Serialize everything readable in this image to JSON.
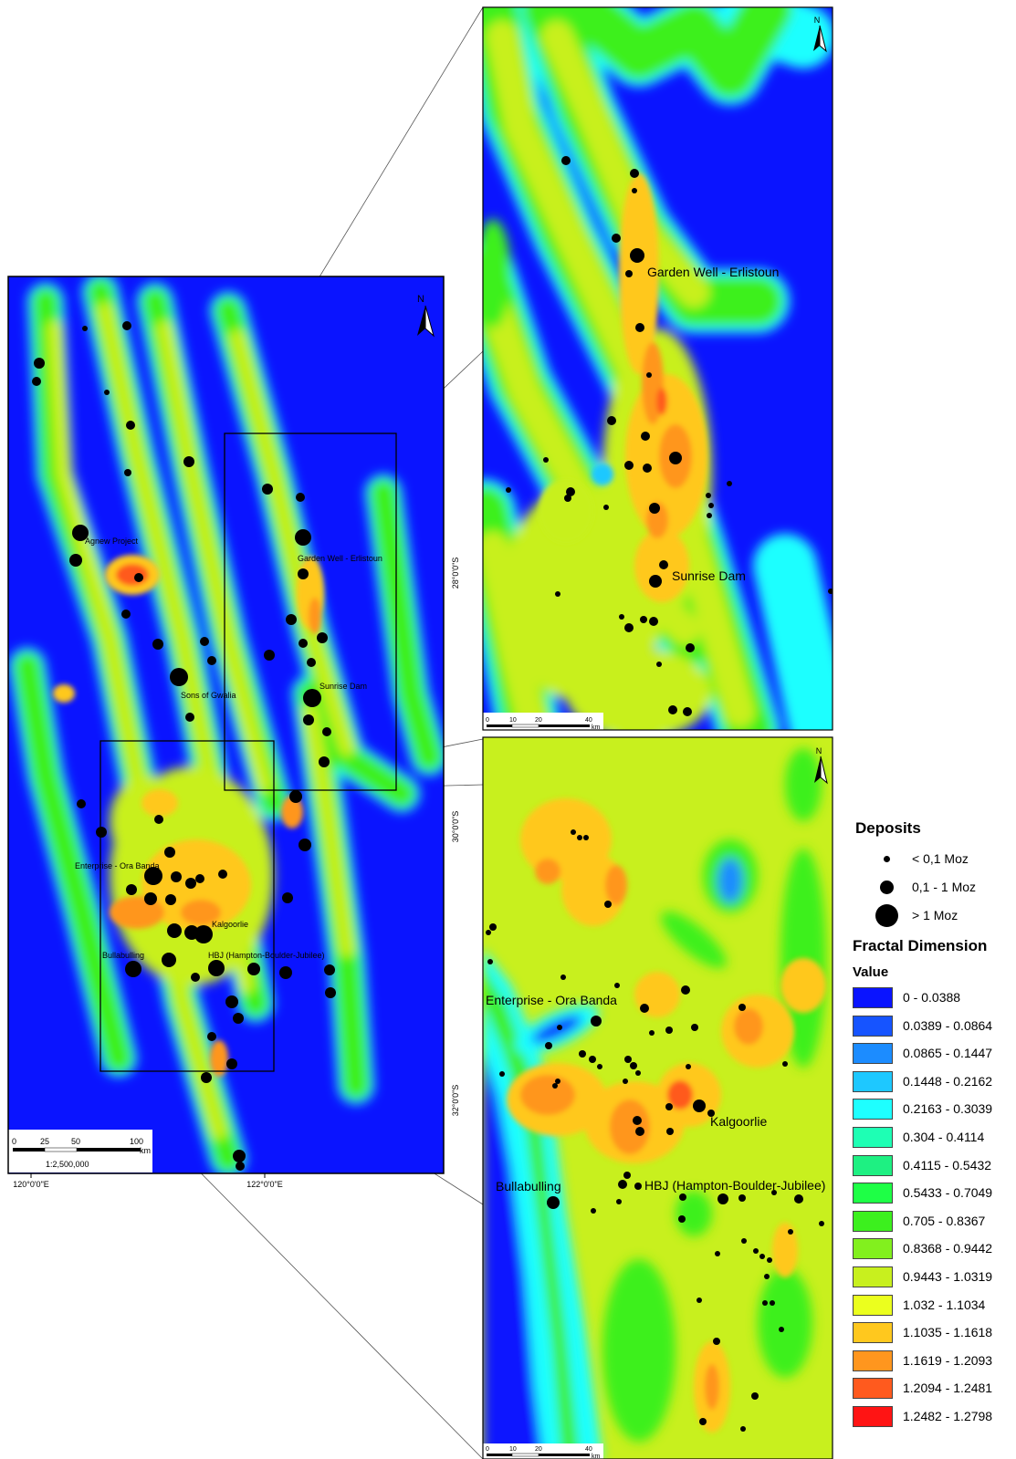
{
  "overview": {
    "north_label": "N",
    "lat_labels": [
      "28°0'0\"S",
      "30°0'0\"S",
      "32°0'0\"S"
    ],
    "lon_labels": [
      "120°0'0\"E",
      "122°0'0\"E"
    ],
    "scale_ticks": [
      "0",
      "25",
      "50",
      "100"
    ],
    "scale_unit": "km",
    "scale_ratio": "1:2,500,000",
    "place_labels": [
      "Agnew Project",
      "Garden Well - Erlistoun",
      "Sons of Gwalia",
      "Sunrise Dam",
      "Enterprise - Ora Banda",
      "Kalgoorlie",
      "Bullabulling",
      "HBJ (Hampton-Boulder-Jubilee)"
    ]
  },
  "inset_north": {
    "north_label": "N",
    "scale_ticks": [
      "0",
      "10",
      "20",
      "40"
    ],
    "scale_unit": "km",
    "place_labels": [
      "Garden Well - Erlistoun",
      "Sunrise Dam"
    ]
  },
  "inset_south": {
    "north_label": "N",
    "scale_ticks": [
      "0",
      "10",
      "20",
      "40"
    ],
    "scale_unit": "km",
    "place_labels": [
      "Enterprise - Ora Banda",
      "Kalgoorlie",
      "Bullabulling",
      "HBJ (Hampton-Boulder-Jubilee)"
    ]
  },
  "legend": {
    "deposits_title": "Deposits",
    "deposit_classes": [
      {
        "label": "< 0,1 Moz",
        "size": "small"
      },
      {
        "label": "0,1 - 1 Moz",
        "size": "medium"
      },
      {
        "label": "> 1 Moz",
        "size": "large"
      }
    ],
    "fractal_title": "Fractal Dimension",
    "value_title": "Value",
    "classes": [
      {
        "label": "0 - 0.0388",
        "color": "#0a14ff"
      },
      {
        "label": "0.0389 - 0.0864",
        "color": "#1654ff"
      },
      {
        "label": "0.0865 - 0.1447",
        "color": "#1c8cff"
      },
      {
        "label": "0.1448 - 0.2162",
        "color": "#1ec8ff"
      },
      {
        "label": "0.2163 - 0.3039",
        "color": "#1effff"
      },
      {
        "label": "0.304 - 0.4114",
        "color": "#1effb4"
      },
      {
        "label": "0.4115 - 0.5432",
        "color": "#1ef082"
      },
      {
        "label": "0.5433 - 0.7049",
        "color": "#1eff46"
      },
      {
        "label": "0.705 - 0.8367",
        "color": "#3cf01e"
      },
      {
        "label": "0.8368 - 0.9442",
        "color": "#82f01e"
      },
      {
        "label": "0.9443 - 1.0319",
        "color": "#c8f01e"
      },
      {
        "label": "1.032 - 1.1034",
        "color": "#ebff1e"
      },
      {
        "label": "1.1035 - 1.1618",
        "color": "#ffc81e"
      },
      {
        "label": "1.1619 - 1.2093",
        "color": "#ff961e"
      },
      {
        "label": "1.2094 - 1.2481",
        "color": "#ff5a1e"
      },
      {
        "label": "1.2482 - 1.2798",
        "color": "#ff1414"
      }
    ]
  }
}
